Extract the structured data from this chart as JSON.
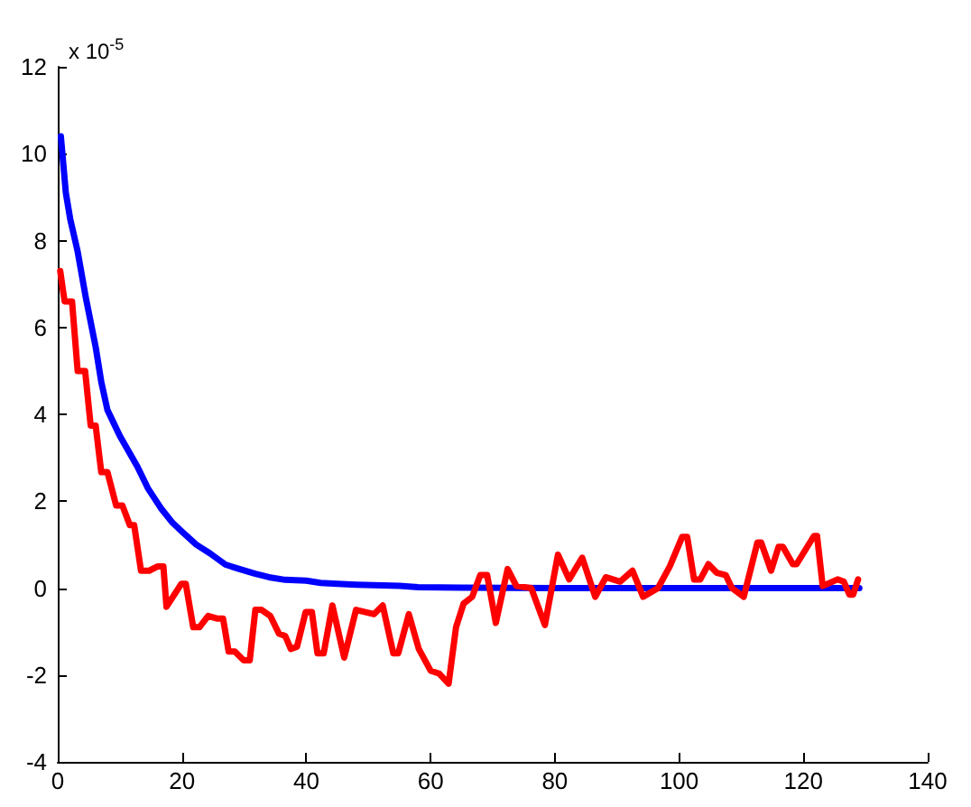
{
  "chart_data": {
    "type": "line",
    "ylabel": "x 10$^{-5}$",
    "xlim": [
      0,
      140
    ],
    "xticks": [
      0,
      20,
      40,
      60,
      80,
      100,
      120,
      140
    ],
    "ylim": [
      -4,
      12
    ],
    "yticks": [
      -4,
      -2,
      0,
      2,
      4,
      6,
      8,
      10,
      12
    ],
    "grid": false,
    "marker": "none",
    "line_style": "solid",
    "series": [
      {
        "color": "#0000ff",
        "x": [
          0.5,
          1.3,
          2,
          3.2,
          4.5,
          6.1,
          7,
          8,
          9,
          10,
          12.8,
          14.5,
          16.6,
          18.5,
          20,
          22.3,
          24.5,
          27,
          29,
          31.8,
          34,
          36.6,
          40,
          42.3,
          45,
          48,
          55,
          58,
          65,
          80,
          100,
          129
        ],
        "values": [
          10.4,
          9.1,
          8.5,
          7.75,
          6.7,
          5.55,
          4.75,
          4.1,
          3.8,
          3.5,
          2.8,
          2.3,
          1.84,
          1.5,
          1.3,
          1.0,
          0.8,
          0.54,
          0.45,
          0.33,
          0.25,
          0.19,
          0.17,
          0.12,
          0.1,
          0.08,
          0.05,
          0.02,
          0.01,
          0,
          0,
          0
        ]
      },
      {
        "color": "#ff0000",
        "x": [
          0.4,
          1.1,
          2.3,
          3.2,
          4.4,
          5.3,
          6.1,
          7,
          8,
          9.4,
          10.4,
          11.6,
          12.3,
          13.4,
          14.7,
          16.1,
          17,
          17.5,
          19.9,
          20.6,
          21.8,
          22.8,
          24.2,
          25.6,
          26.6,
          27.5,
          28.5,
          29.9,
          30.9,
          31.8,
          32.8,
          34.2,
          35.6,
          36.6,
          37.5,
          38.5,
          39.9,
          40.9,
          41.8,
          42.8,
          44.2,
          46.1,
          48,
          50.9,
          52.3,
          54,
          54.8,
          56.5,
          58.1,
          60,
          61.4,
          62.9,
          64.1,
          65.3,
          66.7,
          68,
          69.1,
          70.5,
          72.4,
          73.8,
          76.2,
          78.4,
          80.5,
          82.3,
          84.4,
          86.5,
          88.2,
          90.5,
          92.5,
          94.2,
          96.6,
          98.5,
          100.5,
          101.3,
          102.4,
          103.4,
          104.7,
          106.1,
          107.5,
          108.5,
          110.4,
          112.6,
          113.2,
          114.8,
          116,
          116.7,
          118.3,
          118.9,
          121.7,
          122.2,
          123.1,
          125.5,
          126.5,
          127.4,
          128,
          128.8
        ],
        "values": [
          7.3,
          6.6,
          6.6,
          5.0,
          5.0,
          3.74,
          3.74,
          2.67,
          2.67,
          1.9,
          1.9,
          1.45,
          1.45,
          0.4,
          0.4,
          0.5,
          0.5,
          -0.43,
          0.1,
          0.1,
          -0.9,
          -0.9,
          -0.64,
          -0.7,
          -0.7,
          -1.46,
          -1.46,
          -1.66,
          -1.66,
          -0.5,
          -0.5,
          -0.64,
          -1.05,
          -1.1,
          -1.4,
          -1.35,
          -0.55,
          -0.55,
          -1.5,
          -1.5,
          -0.4,
          -1.6,
          -0.5,
          -0.6,
          -0.4,
          -1.5,
          -1.5,
          -0.6,
          -1.4,
          -1.9,
          -1.97,
          -2.2,
          -0.9,
          -0.36,
          -0.2,
          0.3,
          0.3,
          -0.8,
          0.44,
          0.05,
          0,
          -0.85,
          0.77,
          0.2,
          0.7,
          -0.2,
          0.25,
          0.15,
          0.4,
          -0.2,
          0,
          0.5,
          1.18,
          1.18,
          0.2,
          0.2,
          0.55,
          0.35,
          0.3,
          0,
          -0.2,
          1.05,
          1.05,
          0.4,
          0.95,
          0.95,
          0.55,
          0.55,
          1.2,
          1.2,
          0.05,
          0.2,
          0.15,
          -0.15,
          -0.15,
          0.2
        ]
      }
    ]
  }
}
